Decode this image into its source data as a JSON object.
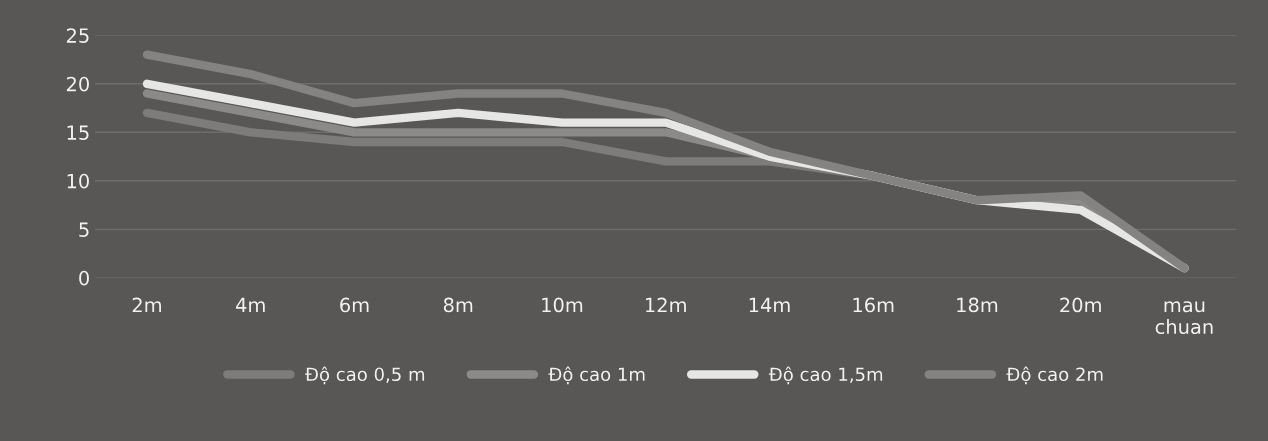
{
  "chart_data": {
    "type": "line",
    "categories": [
      "2m",
      "4m",
      "6m",
      "8m",
      "10m",
      "12m",
      "14m",
      "16m",
      "18m",
      "20m",
      "mau\nchuan"
    ],
    "series": [
      {
        "name": "Độ cao 0,5 m",
        "color": "#7e7c7a",
        "values": [
          17,
          15,
          14,
          14,
          14,
          12,
          12,
          10.5,
          8,
          8,
          1
        ]
      },
      {
        "name": "Độ cao 1m",
        "color": "#8c8a88",
        "values": [
          19,
          17,
          15,
          15,
          15,
          15,
          12.5,
          10.5,
          8,
          8,
          1
        ]
      },
      {
        "name": "Độ cao 1,5m",
        "color": "#e6e6e4",
        "values": [
          20,
          18,
          16,
          17,
          16,
          16,
          12.5,
          10.5,
          8,
          7,
          1
        ]
      },
      {
        "name": "Độ cao 2m",
        "color": "#858381",
        "values": [
          23,
          21,
          18,
          19,
          19,
          17,
          13,
          10.5,
          8,
          8.5,
          1
        ]
      }
    ],
    "ylim": [
      0,
      25
    ],
    "yticks": [
      0,
      5,
      10,
      15,
      20,
      25
    ],
    "grid": "y",
    "legend": "bottom",
    "marker": "none",
    "line_style": "solid"
  }
}
